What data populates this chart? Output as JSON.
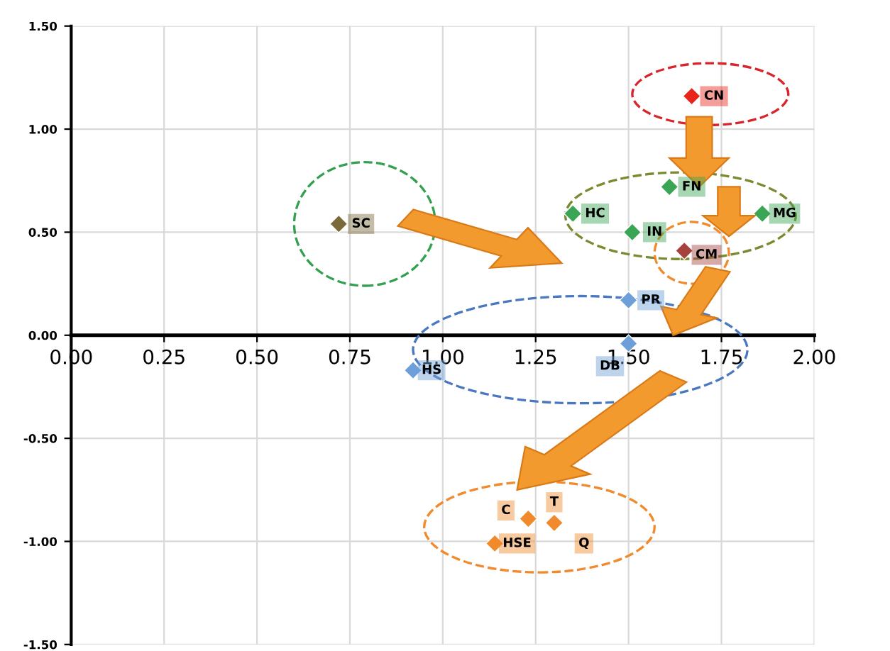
{
  "chart_data": {
    "type": "scatter",
    "marker": "diamond",
    "grid": true,
    "xlim": [
      0,
      2
    ],
    "xticks": [
      {
        "value": 0,
        "label": "0.00"
      },
      {
        "value": 0.25,
        "label": "0.25"
      },
      {
        "value": 0.5,
        "label": "0.50"
      },
      {
        "value": 0.75,
        "label": "0.75"
      },
      {
        "value": 1,
        "label": "1.00"
      },
      {
        "value": 1.25,
        "label": "1.25"
      },
      {
        "value": 1.5,
        "label": "1.50"
      },
      {
        "value": 1.75,
        "label": "1.75"
      },
      {
        "value": 2,
        "label": "2.00"
      }
    ],
    "ylim": [
      -1.5,
      1.5
    ],
    "yticks": [
      {
        "value": -1.5,
        "label": "-1.50"
      },
      {
        "value": -1,
        "label": "-1.00"
      },
      {
        "value": -0.5,
        "label": "-0.50"
      },
      {
        "value": 0,
        "label": "0.00"
      },
      {
        "value": 0.5,
        "label": "0.50"
      },
      {
        "value": 1,
        "label": "1.00"
      },
      {
        "value": 1.5,
        "label": "1.50"
      }
    ],
    "x": [
      1.67,
      1.61,
      1.35,
      1.51,
      1.86,
      1.65,
      0.72,
      1.5,
      1.5,
      0.92,
      1.23,
      1.3,
      1.14
    ],
    "values": [
      1.16,
      0.72,
      0.59,
      0.5,
      0.59,
      0.41,
      0.54,
      0.17,
      -0.04,
      -0.17,
      -0.89,
      -0.91,
      -1.01
    ],
    "colors": [
      "#e8251b",
      "#3aa655",
      "#3aa655",
      "#3aa655",
      "#3aa655",
      "#a5423e",
      "#7a6a3a",
      "#6f9fd8",
      "#6f9fd8",
      "#6f9fd8",
      "#f08a2c",
      "#f08a2c",
      "#f08a2c"
    ],
    "annotations": [
      {
        "text": "CN",
        "x": 1.67,
        "y": 1.16
      },
      {
        "text": "FN",
        "x": 1.61,
        "y": 0.72
      },
      {
        "text": "HC",
        "x": 1.35,
        "y": 0.59
      },
      {
        "text": "IN",
        "x": 1.51,
        "y": 0.5
      },
      {
        "text": "MG",
        "x": 1.86,
        "y": 0.59
      },
      {
        "text": "CM",
        "x": 1.65,
        "y": 0.41
      },
      {
        "text": "SC",
        "x": 0.72,
        "y": 0.54
      },
      {
        "text": "PR",
        "x": 1.5,
        "y": 0.17
      },
      {
        "text": "DB",
        "x": 1.5,
        "y": -0.04
      },
      {
        "text": "HS",
        "x": 0.92,
        "y": -0.17
      },
      {
        "text": "C",
        "x": 1.23,
        "y": -0.89
      },
      {
        "text": "T",
        "x": 1.3,
        "y": -0.91
      },
      {
        "text": "HSE",
        "x": 1.14,
        "y": -1.01
      },
      {
        "text": "Q",
        "x": 1.3,
        "y": -0.91
      }
    ]
  }
}
